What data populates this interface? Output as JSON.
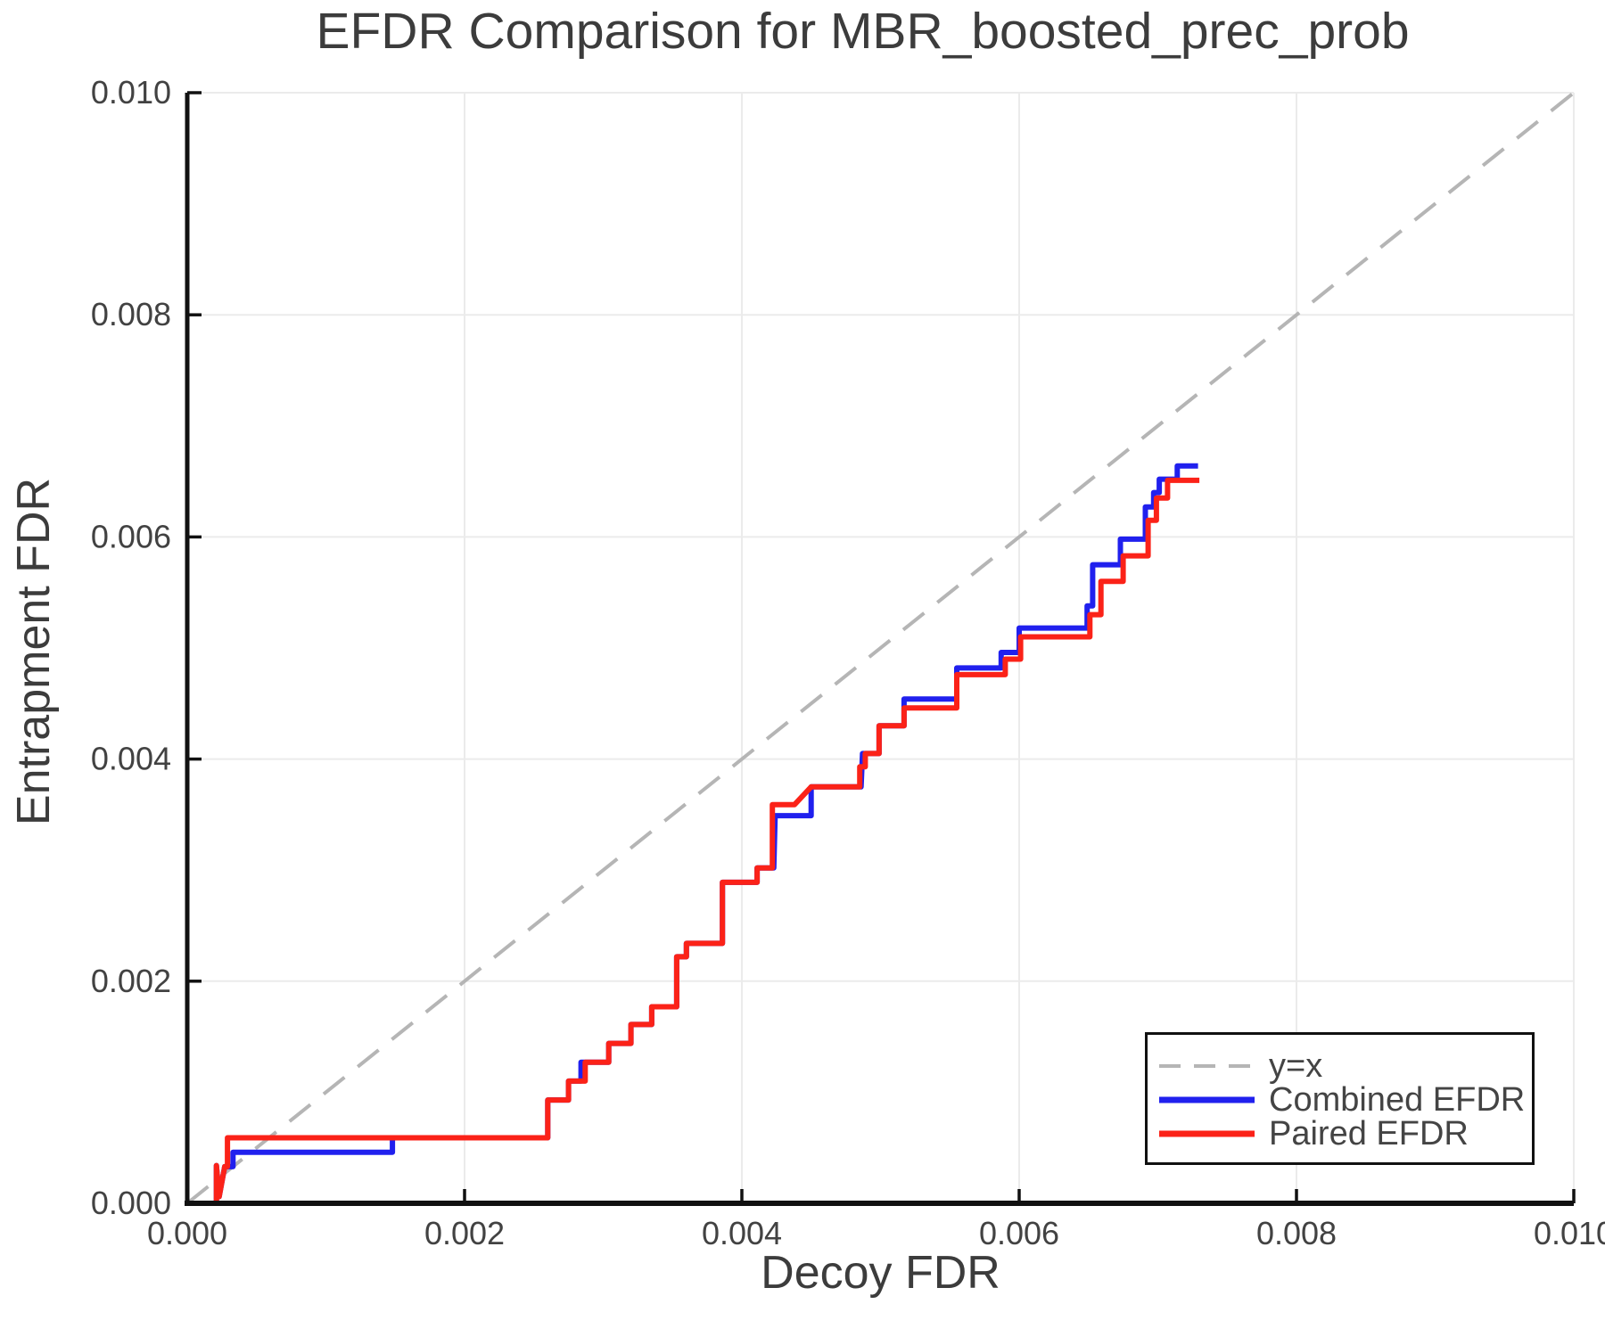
{
  "chart_data": {
    "type": "line",
    "title": "EFDR Comparison for MBR_boosted_prec_prob",
    "xlabel": "Decoy FDR",
    "ylabel": "Entrapment FDR",
    "xlim": [
      0.0,
      0.01
    ],
    "ylim": [
      0.0,
      0.01
    ],
    "grid": true,
    "legend_position": "lower right",
    "ticks": {
      "values": [
        0.0,
        0.002,
        0.004,
        0.006,
        0.008,
        0.01
      ],
      "labels": [
        "0.000",
        "0.002",
        "0.004",
        "0.006",
        "0.008",
        "0.010"
      ]
    },
    "colors": {
      "grid": "#ebebeb",
      "spine": "#111111",
      "title_text": "#3c3c3c",
      "tick_text": "#424242",
      "legend_text": "#444444",
      "identity": "#b5b5b5",
      "combined": "#2020ee",
      "paired": "#fb2218"
    },
    "series": [
      {
        "name": "y=x",
        "color": "#b5b5b5",
        "width": 4,
        "dash": "30 19",
        "points": [
          [
            0.0,
            0.0
          ],
          [
            0.01,
            0.01
          ]
        ]
      },
      {
        "name": "Combined EFDR",
        "color": "#2020ee",
        "width": 6,
        "dash": null,
        "points": [
          [
            0.0,
            0.0
          ],
          [
            0.00021,
            0.0
          ],
          [
            0.00021,
            0.00034
          ],
          [
            0.00023,
            6e-05
          ],
          [
            0.00027,
            0.00033
          ],
          [
            0.00033,
            0.00033
          ],
          [
            0.00033,
            0.00046
          ],
          [
            0.00148,
            0.00046
          ],
          [
            0.00148,
            0.00059
          ],
          [
            0.0026,
            0.00059
          ],
          [
            0.0026,
            0.00093
          ],
          [
            0.00275,
            0.00093
          ],
          [
            0.00275,
            0.0011
          ],
          [
            0.00284,
            0.0011
          ],
          [
            0.00284,
            0.00127
          ],
          [
            0.00304,
            0.00127
          ],
          [
            0.00304,
            0.00144
          ],
          [
            0.0032,
            0.00144
          ],
          [
            0.0032,
            0.00161
          ],
          [
            0.00335,
            0.00161
          ],
          [
            0.00335,
            0.00177
          ],
          [
            0.00353,
            0.00177
          ],
          [
            0.00353,
            0.00222
          ],
          [
            0.0036,
            0.00222
          ],
          [
            0.0036,
            0.00234
          ],
          [
            0.00386,
            0.00234
          ],
          [
            0.00386,
            0.00289
          ],
          [
            0.00411,
            0.00289
          ],
          [
            0.00411,
            0.00302
          ],
          [
            0.00423,
            0.00302
          ],
          [
            0.00424,
            0.00349
          ],
          [
            0.0045,
            0.00349
          ],
          [
            0.0045,
            0.00375
          ],
          [
            0.00486,
            0.00375
          ],
          [
            0.00487,
            0.00405
          ],
          [
            0.00499,
            0.00405
          ],
          [
            0.00499,
            0.0043
          ],
          [
            0.00517,
            0.0043
          ],
          [
            0.00517,
            0.00454
          ],
          [
            0.00555,
            0.00454
          ],
          [
            0.00555,
            0.00482
          ],
          [
            0.00587,
            0.00482
          ],
          [
            0.00587,
            0.00496
          ],
          [
            0.006,
            0.00496
          ],
          [
            0.006,
            0.00518
          ],
          [
            0.00649,
            0.00518
          ],
          [
            0.00649,
            0.00538
          ],
          [
            0.00653,
            0.00538
          ],
          [
            0.00653,
            0.00575
          ],
          [
            0.00673,
            0.00575
          ],
          [
            0.00673,
            0.00598
          ],
          [
            0.00691,
            0.00598
          ],
          [
            0.00691,
            0.00627
          ],
          [
            0.00697,
            0.00627
          ],
          [
            0.00697,
            0.0064
          ],
          [
            0.00701,
            0.0064
          ],
          [
            0.00701,
            0.00652
          ],
          [
            0.00714,
            0.00652
          ],
          [
            0.00714,
            0.00664
          ],
          [
            0.00729,
            0.00664
          ]
        ]
      },
      {
        "name": "Paired EFDR",
        "color": "#fb2218",
        "width": 6,
        "dash": null,
        "points": [
          [
            0.0,
            0.0
          ],
          [
            0.00021,
            0.0
          ],
          [
            0.00021,
            0.00034
          ],
          [
            0.00023,
            6e-05
          ],
          [
            0.00027,
            0.00033
          ],
          [
            0.00029,
            0.00033
          ],
          [
            0.00029,
            0.00059
          ],
          [
            0.0026,
            0.00059
          ],
          [
            0.0026,
            0.00093
          ],
          [
            0.00275,
            0.00093
          ],
          [
            0.00275,
            0.0011
          ],
          [
            0.00287,
            0.0011
          ],
          [
            0.00287,
            0.00127
          ],
          [
            0.00304,
            0.00127
          ],
          [
            0.00304,
            0.00144
          ],
          [
            0.0032,
            0.00144
          ],
          [
            0.0032,
            0.00161
          ],
          [
            0.00335,
            0.00161
          ],
          [
            0.00335,
            0.00177
          ],
          [
            0.00353,
            0.00177
          ],
          [
            0.00353,
            0.00222
          ],
          [
            0.0036,
            0.00222
          ],
          [
            0.0036,
            0.00234
          ],
          [
            0.00386,
            0.00234
          ],
          [
            0.00386,
            0.00289
          ],
          [
            0.00411,
            0.00289
          ],
          [
            0.00411,
            0.00302
          ],
          [
            0.00422,
            0.00302
          ],
          [
            0.00422,
            0.00359
          ],
          [
            0.00438,
            0.00359
          ],
          [
            0.0045,
            0.00375
          ],
          [
            0.00485,
            0.00375
          ],
          [
            0.00485,
            0.00393
          ],
          [
            0.00489,
            0.00393
          ],
          [
            0.00489,
            0.00405
          ],
          [
            0.00499,
            0.00405
          ],
          [
            0.00499,
            0.0043
          ],
          [
            0.00517,
            0.0043
          ],
          [
            0.00517,
            0.00446
          ],
          [
            0.00555,
            0.00446
          ],
          [
            0.00555,
            0.00476
          ],
          [
            0.0059,
            0.00476
          ],
          [
            0.0059,
            0.0049
          ],
          [
            0.00601,
            0.0049
          ],
          [
            0.00601,
            0.0051
          ],
          [
            0.00651,
            0.0051
          ],
          [
            0.00651,
            0.0053
          ],
          [
            0.00659,
            0.0053
          ],
          [
            0.00659,
            0.0056
          ],
          [
            0.00675,
            0.0056
          ],
          [
            0.00675,
            0.00583
          ],
          [
            0.00693,
            0.00583
          ],
          [
            0.00693,
            0.00615
          ],
          [
            0.00699,
            0.00615
          ],
          [
            0.00699,
            0.00635
          ],
          [
            0.00707,
            0.00635
          ],
          [
            0.00707,
            0.00651
          ],
          [
            0.0073,
            0.00651
          ]
        ]
      }
    ]
  }
}
